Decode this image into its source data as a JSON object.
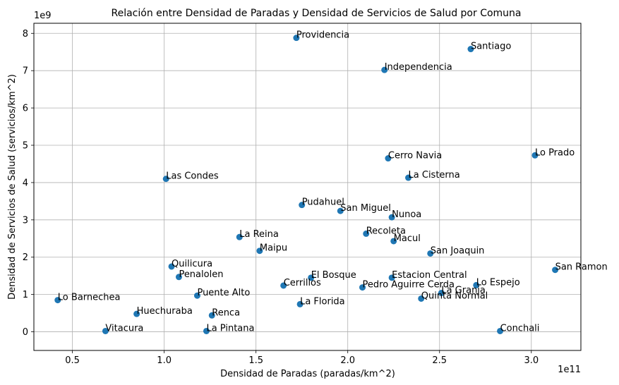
{
  "chart_data": {
    "type": "scatter",
    "title": "Relación entre Densidad de Paradas y Densidad de Servicios de Salud por Comuna",
    "xlabel": "Densidad de Paradas (paradas/km^2)",
    "ylabel": "Densidad de Servicios de Salud (servicios/km^2)",
    "x_multiplier": "1e11",
    "y_multiplier": "1e9",
    "xlim": [
      0.29,
      3.27
    ],
    "ylim": [
      -0.5,
      8.27
    ],
    "xticks": [
      0.5,
      1.0,
      1.5,
      2.0,
      2.5,
      3.0
    ],
    "xtick_labels": [
      "0.5",
      "1.0",
      "1.5",
      "2.0",
      "2.5",
      "3.0"
    ],
    "yticks": [
      0,
      1,
      2,
      3,
      4,
      5,
      6,
      7,
      8
    ],
    "ytick_labels": [
      "0",
      "1",
      "2",
      "3",
      "4",
      "5",
      "6",
      "7",
      "8"
    ],
    "grid": true,
    "marker_color": "#1f77b4",
    "points": [
      {
        "label": "Providencia",
        "x": 1.72,
        "y": 7.88
      },
      {
        "label": "Santiago",
        "x": 2.67,
        "y": 7.58
      },
      {
        "label": "Independencia",
        "x": 2.2,
        "y": 7.02
      },
      {
        "label": "Lo Prado",
        "x": 3.02,
        "y": 4.73
      },
      {
        "label": "Cerro Navia",
        "x": 2.22,
        "y": 4.65
      },
      {
        "label": "Las Condes",
        "x": 1.01,
        "y": 4.1
      },
      {
        "label": "La Cisterna",
        "x": 2.33,
        "y": 4.13
      },
      {
        "label": "Pudahuel",
        "x": 1.75,
        "y": 3.4
      },
      {
        "label": "San Miguel",
        "x": 1.96,
        "y": 3.24
      },
      {
        "label": "Nunoa",
        "x": 2.24,
        "y": 3.07
      },
      {
        "label": "Recoleta",
        "x": 2.1,
        "y": 2.63
      },
      {
        "label": "La Reina",
        "x": 1.41,
        "y": 2.54
      },
      {
        "label": "Macul",
        "x": 2.25,
        "y": 2.43
      },
      {
        "label": "Maipu",
        "x": 1.52,
        "y": 2.17
      },
      {
        "label": "San Joaquin",
        "x": 2.45,
        "y": 2.1
      },
      {
        "label": "Quilicura",
        "x": 1.04,
        "y": 1.75
      },
      {
        "label": "San Ramon",
        "x": 3.13,
        "y": 1.66
      },
      {
        "label": "Penalolen",
        "x": 1.08,
        "y": 1.47
      },
      {
        "label": "El Bosque",
        "x": 1.8,
        "y": 1.45
      },
      {
        "label": "Estacion Central",
        "x": 2.24,
        "y": 1.45
      },
      {
        "label": "Cerrillos",
        "x": 1.65,
        "y": 1.24
      },
      {
        "label": "Lo Espejo",
        "x": 2.7,
        "y": 1.25
      },
      {
        "label": "Pedro Aguirre Cerda",
        "x": 2.08,
        "y": 1.19
      },
      {
        "label": "La Granja",
        "x": 2.51,
        "y": 1.04
      },
      {
        "label": "Puente Alto",
        "x": 1.18,
        "y": 0.97
      },
      {
        "label": "Quinta Normal",
        "x": 2.4,
        "y": 0.89
      },
      {
        "label": "Lo Barnechea",
        "x": 0.42,
        "y": 0.85
      },
      {
        "label": "La Florida",
        "x": 1.74,
        "y": 0.74
      },
      {
        "label": "Huechuraba",
        "x": 0.85,
        "y": 0.48
      },
      {
        "label": "Renca",
        "x": 1.26,
        "y": 0.44
      },
      {
        "label": "Vitacura",
        "x": 0.68,
        "y": 0.02
      },
      {
        "label": "La Pintana",
        "x": 1.23,
        "y": 0.02
      },
      {
        "label": "Conchali",
        "x": 2.83,
        "y": 0.02
      }
    ]
  }
}
